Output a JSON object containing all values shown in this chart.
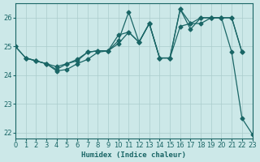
{
  "xlabel": "Humidex (Indice chaleur)",
  "ylabel": "",
  "xlim": [
    0,
    23
  ],
  "ylim": [
    21.8,
    26.5
  ],
  "yticks": [
    22,
    23,
    24,
    25,
    26
  ],
  "xticks": [
    0,
    1,
    2,
    3,
    4,
    5,
    6,
    7,
    8,
    9,
    10,
    11,
    12,
    13,
    14,
    15,
    16,
    17,
    18,
    19,
    20,
    21,
    22,
    23
  ],
  "bg_color": "#cce8e8",
  "grid_color": "#aacccc",
  "line_color": "#1a6666",
  "lines": [
    {
      "x": [
        0,
        1,
        2,
        3,
        4,
        5,
        6,
        7,
        8,
        9,
        10,
        11,
        12,
        13,
        14,
        15,
        16,
        17,
        18,
        19,
        20,
        21,
        22
      ],
      "y": [
        25.0,
        24.6,
        24.5,
        24.4,
        24.3,
        24.4,
        24.5,
        24.8,
        24.85,
        24.85,
        25.2,
        26.2,
        25.15,
        25.8,
        24.6,
        24.6,
        26.3,
        25.8,
        26.0,
        26.0,
        26.0,
        26.0,
        24.8
      ]
    },
    {
      "x": [
        1,
        2,
        3,
        4,
        5,
        6,
        7,
        8,
        9,
        10,
        11,
        12,
        13,
        14,
        15,
        16,
        17,
        18,
        19,
        20,
        21,
        22
      ],
      "y": [
        24.6,
        24.5,
        24.4,
        24.2,
        24.4,
        24.55,
        24.8,
        24.85,
        24.85,
        25.4,
        25.5,
        25.15,
        25.8,
        24.6,
        24.6,
        25.7,
        25.8,
        25.8,
        26.0,
        26.0,
        26.0,
        24.8
      ]
    },
    {
      "x": [
        0,
        1,
        2,
        3,
        4,
        5,
        6,
        7,
        8,
        9,
        10,
        11,
        12,
        13,
        14,
        15,
        16,
        17,
        18,
        19,
        20,
        21,
        22,
        23
      ],
      "y": [
        25.0,
        24.6,
        24.5,
        24.4,
        24.15,
        24.2,
        24.4,
        24.55,
        24.8,
        24.85,
        25.1,
        25.5,
        25.15,
        25.8,
        24.6,
        24.6,
        26.3,
        25.6,
        26.0,
        26.0,
        26.0,
        24.8,
        22.5,
        21.95
      ]
    }
  ]
}
